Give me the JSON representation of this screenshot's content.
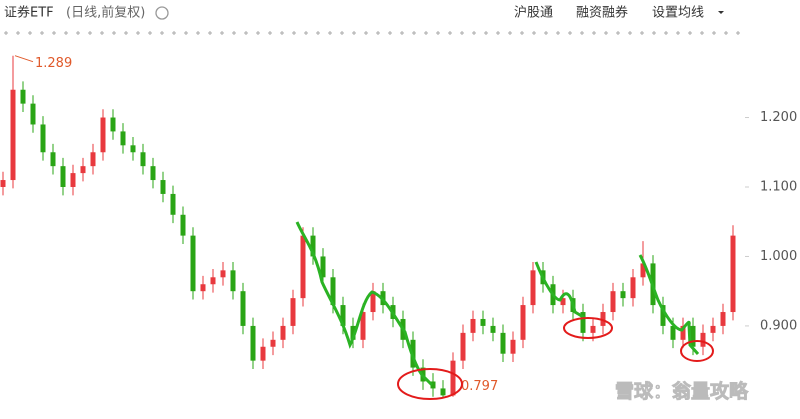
{
  "header": {
    "title": "证券ETF",
    "subtitle": "(日线,前复权)",
    "buttons": [
      "沪股通",
      "融资融券",
      "设置均线"
    ]
  },
  "watermark": "雪球：翁量攻略",
  "chart_data": {
    "type": "candlestick",
    "up_color": "#e8393e",
    "down_color": "#2aa515",
    "ylim": [
      0.766,
      1.326
    ],
    "yticks": [
      {
        "value": 0.9,
        "label": "0.900"
      },
      {
        "value": 1.0,
        "label": "1.000"
      },
      {
        "value": 1.1,
        "label": "1.100"
      },
      {
        "value": 1.2,
        "label": "1.200"
      }
    ],
    "open": [
      1.1,
      1.11,
      1.24,
      1.22,
      1.19,
      1.15,
      1.13,
      1.1,
      1.12,
      1.13,
      1.15,
      1.2,
      1.18,
      1.16,
      1.15,
      1.13,
      1.11,
      1.09,
      1.06,
      1.03,
      0.95,
      0.96,
      0.97,
      0.98,
      0.95,
      0.9,
      0.85,
      0.87,
      0.88,
      0.9,
      0.94,
      1.03,
      1.0,
      0.97,
      0.93,
      0.9,
      0.88,
      0.92,
      0.95,
      0.93,
      0.91,
      0.88,
      0.84,
      0.82,
      0.81,
      0.8,
      0.85,
      0.89,
      0.91,
      0.9,
      0.89,
      0.86,
      0.88,
      0.93,
      0.98,
      0.96,
      0.93,
      0.94,
      0.92,
      0.89,
      0.9,
      0.92,
      0.95,
      0.94,
      0.97,
      0.99,
      0.93,
      0.9,
      0.88,
      0.9,
      0.87,
      0.89,
      0.9,
      0.92
    ],
    "high": [
      1.122,
      1.289,
      1.252,
      1.232,
      1.202,
      1.162,
      1.142,
      1.132,
      1.142,
      1.162,
      1.212,
      1.212,
      1.192,
      1.172,
      1.162,
      1.142,
      1.122,
      1.102,
      1.072,
      1.042,
      0.972,
      0.982,
      0.992,
      0.992,
      0.962,
      0.912,
      0.882,
      0.892,
      0.912,
      0.952,
      1.042,
      1.042,
      1.012,
      0.982,
      0.942,
      0.912,
      0.932,
      0.962,
      0.962,
      0.942,
      0.922,
      0.892,
      0.852,
      0.832,
      0.822,
      0.862,
      0.902,
      0.922,
      0.922,
      0.912,
      0.902,
      0.892,
      0.942,
      0.992,
      0.992,
      0.972,
      0.952,
      0.952,
      0.932,
      0.912,
      0.932,
      0.962,
      0.962,
      0.982,
      1.022,
      1.002,
      0.942,
      0.912,
      0.912,
      0.912,
      0.902,
      0.912,
      0.932,
      1.045
    ],
    "low": [
      1.088,
      1.098,
      1.208,
      1.178,
      1.138,
      1.118,
      1.088,
      1.088,
      1.108,
      1.118,
      1.138,
      1.168,
      1.148,
      1.138,
      1.118,
      1.098,
      1.078,
      1.048,
      1.018,
      0.938,
      0.938,
      0.948,
      0.958,
      0.938,
      0.888,
      0.838,
      0.838,
      0.858,
      0.868,
      0.888,
      0.928,
      0.988,
      0.958,
      0.918,
      0.888,
      0.868,
      0.868,
      0.908,
      0.918,
      0.898,
      0.868,
      0.828,
      0.808,
      0.798,
      0.797,
      0.798,
      0.838,
      0.878,
      0.888,
      0.878,
      0.848,
      0.848,
      0.868,
      0.918,
      0.948,
      0.918,
      0.918,
      0.908,
      0.878,
      0.878,
      0.888,
      0.908,
      0.928,
      0.928,
      0.958,
      0.918,
      0.888,
      0.868,
      0.868,
      0.858,
      0.858,
      0.878,
      0.888,
      0.908
    ],
    "close": [
      1.11,
      1.24,
      1.22,
      1.19,
      1.15,
      1.13,
      1.1,
      1.12,
      1.13,
      1.15,
      1.2,
      1.18,
      1.16,
      1.15,
      1.13,
      1.11,
      1.09,
      1.06,
      1.03,
      0.95,
      0.96,
      0.97,
      0.98,
      0.95,
      0.9,
      0.85,
      0.87,
      0.88,
      0.9,
      0.94,
      1.03,
      1.0,
      0.97,
      0.93,
      0.9,
      0.88,
      0.92,
      0.95,
      0.93,
      0.91,
      0.88,
      0.84,
      0.82,
      0.81,
      0.8,
      0.85,
      0.89,
      0.91,
      0.9,
      0.89,
      0.86,
      0.88,
      0.93,
      0.98,
      0.96,
      0.93,
      0.94,
      0.92,
      0.89,
      0.9,
      0.92,
      0.95,
      0.94,
      0.97,
      0.99,
      0.93,
      0.9,
      0.88,
      0.9,
      0.87,
      0.89,
      0.9,
      0.92,
      1.03
    ],
    "max_label": 1.289,
    "min_label": 0.797
  }
}
